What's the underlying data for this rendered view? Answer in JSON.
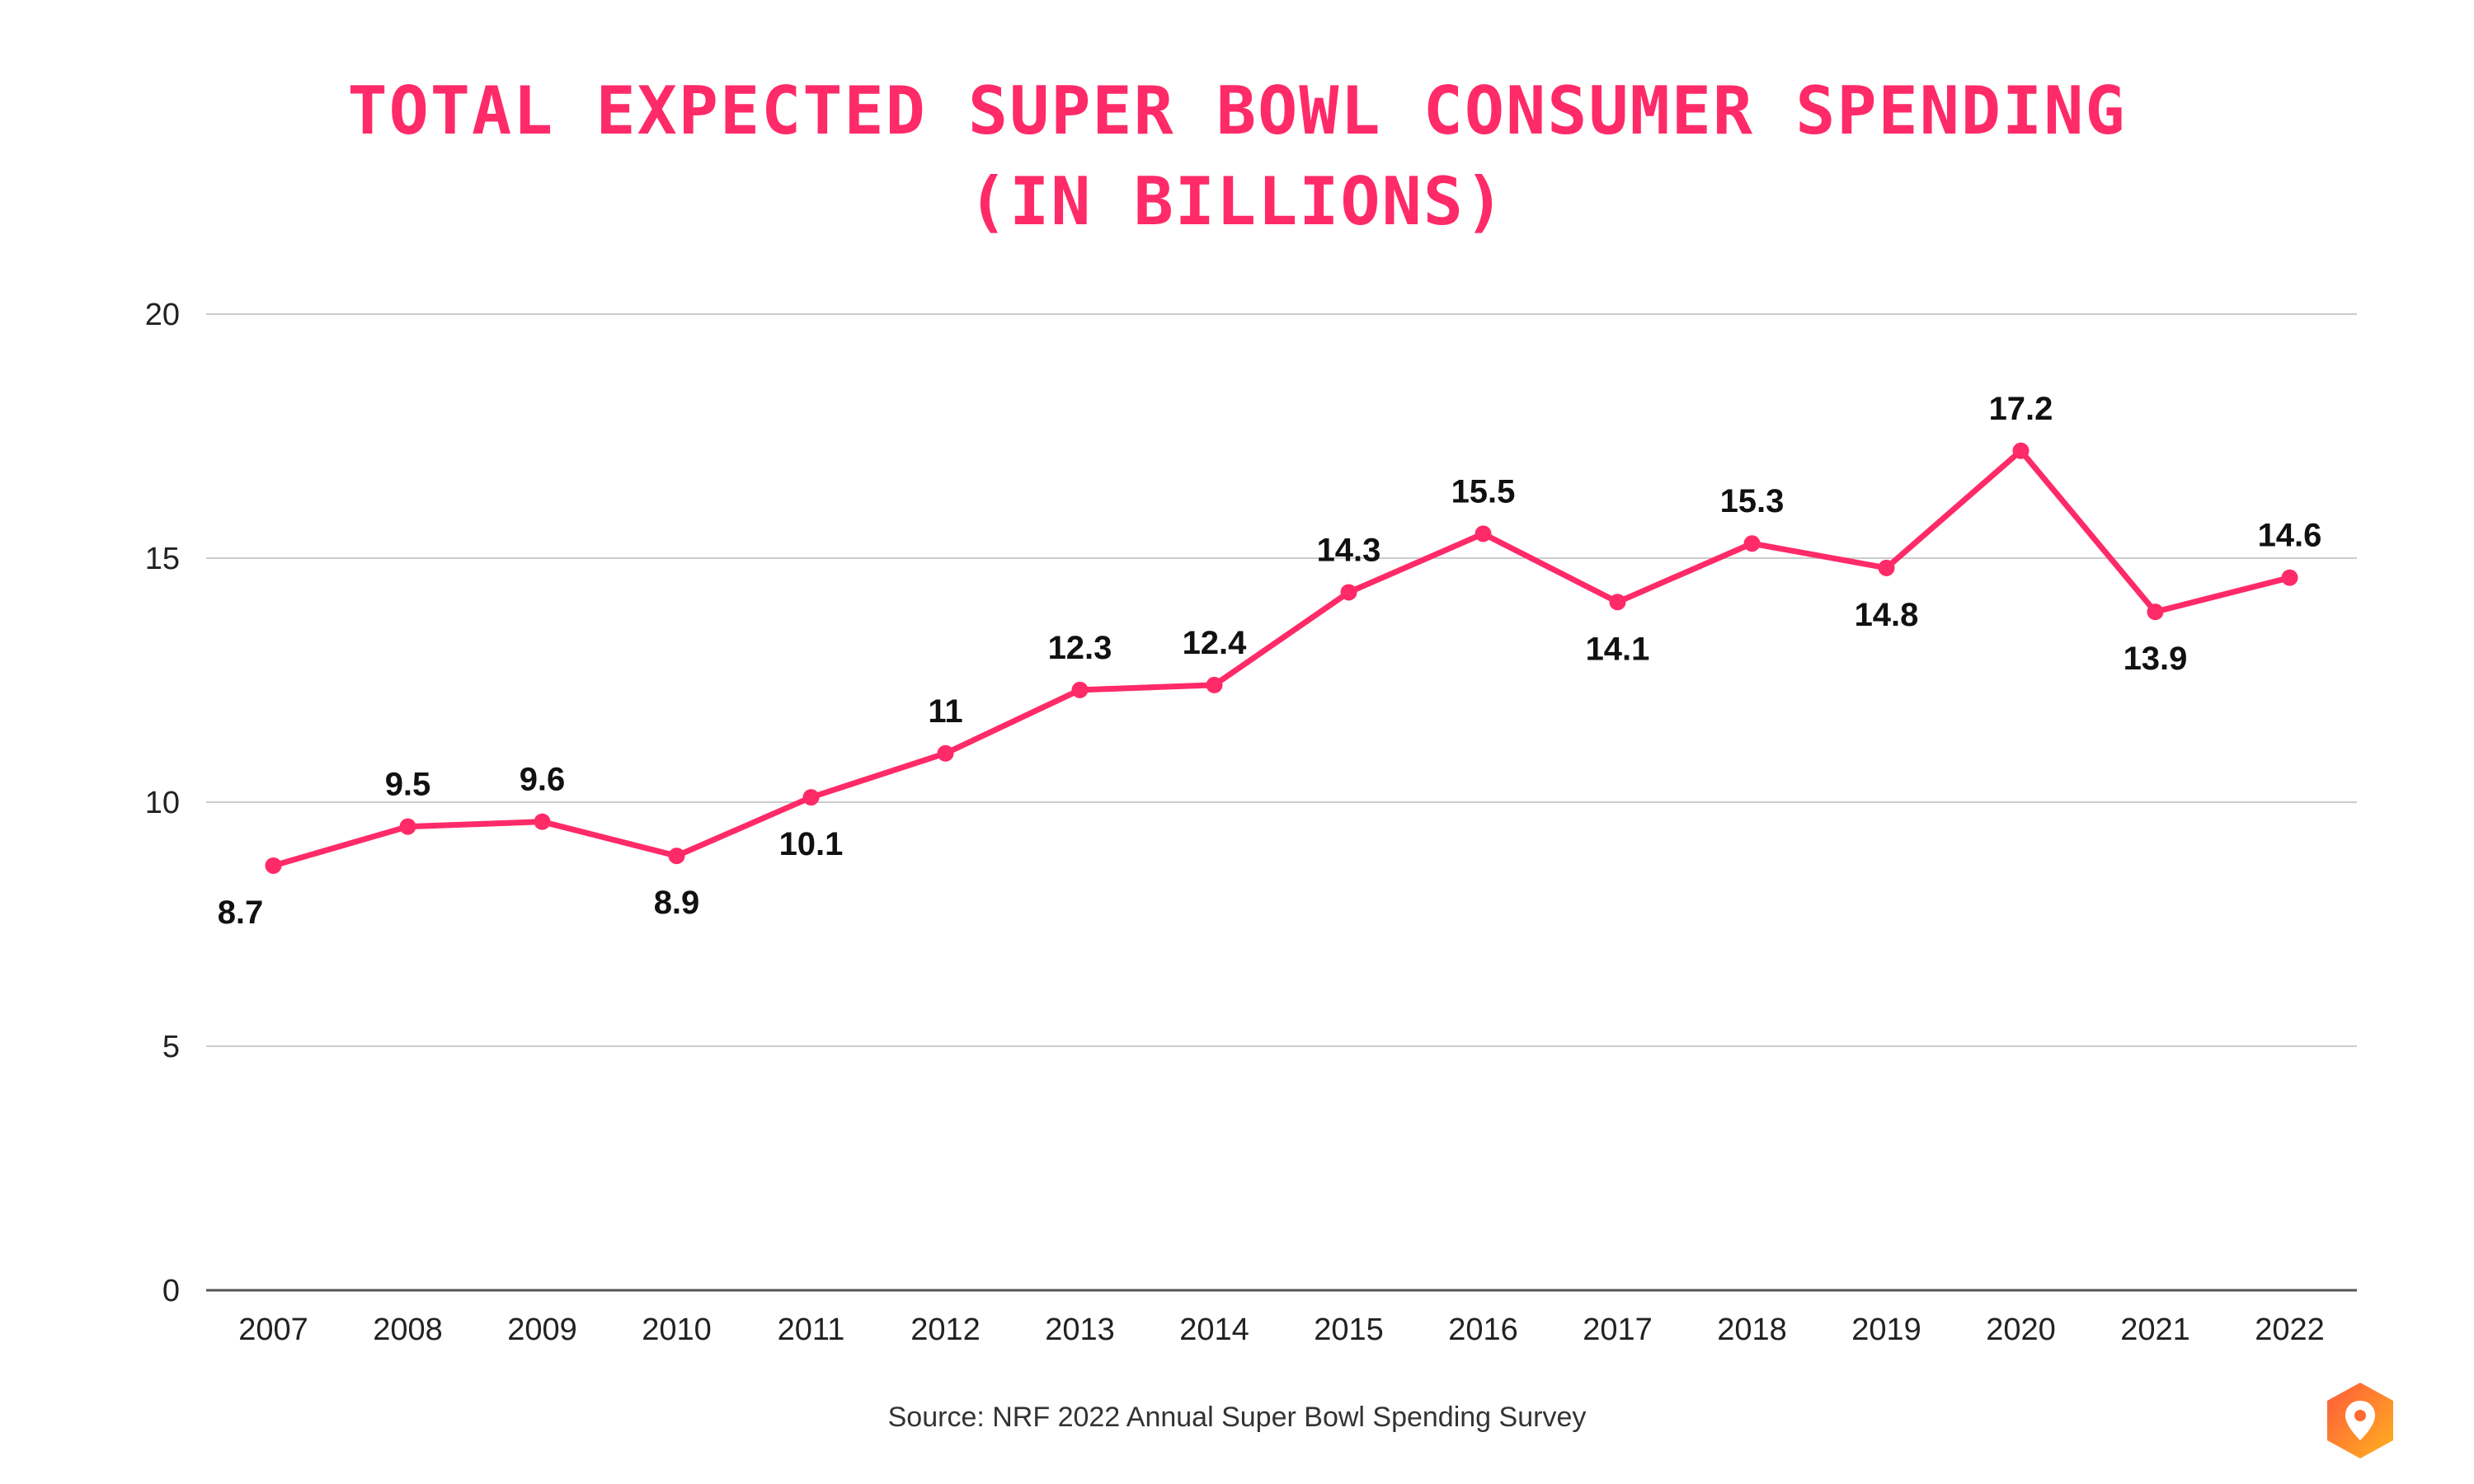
{
  "title_line1": "TOTAL EXPECTED SUPER BOWL CONSUMER SPENDING",
  "title_line2": "(IN BILLIONS)",
  "source": "Source: NRF 2022 Annual Super Bowl Spending Survey",
  "colors": {
    "line": "#ff2a68",
    "title": "#ff2a68",
    "grid": "#cccccc",
    "axis": "#555555",
    "label": "#111111"
  },
  "logo_icon": "location-pin-hexagon-icon",
  "chart_data": {
    "type": "line",
    "title": "TOTAL EXPECTED SUPER BOWL CONSUMER SPENDING (IN BILLIONS)",
    "categories": [
      "2007",
      "2008",
      "2009",
      "2010",
      "2011",
      "2012",
      "2013",
      "2014",
      "2015",
      "2016",
      "2017",
      "2018",
      "2019",
      "2020",
      "2021",
      "2022"
    ],
    "values": [
      8.7,
      9.5,
      9.6,
      8.9,
      10.1,
      11,
      12.3,
      12.4,
      14.3,
      15.5,
      14.1,
      15.3,
      14.8,
      17.2,
      13.9,
      14.6
    ],
    "data_labels": [
      "8.7",
      "9.5",
      "9.6",
      "8.9",
      "10.1",
      "11",
      "12.3",
      "12.4",
      "14.3",
      "15.5",
      "14.1",
      "15.3",
      "14.8",
      "17.2",
      "13.9",
      "14.6"
    ],
    "label_position": [
      "below",
      "above",
      "above",
      "below",
      "below",
      "above",
      "above",
      "above",
      "above",
      "above",
      "below",
      "above",
      "below",
      "above",
      "below",
      "above"
    ],
    "ylim": [
      0,
      20
    ],
    "yticks": [
      "0",
      "5",
      "10",
      "15",
      "20"
    ],
    "grid": true,
    "legend": "none",
    "xlabel": "",
    "ylabel": ""
  }
}
